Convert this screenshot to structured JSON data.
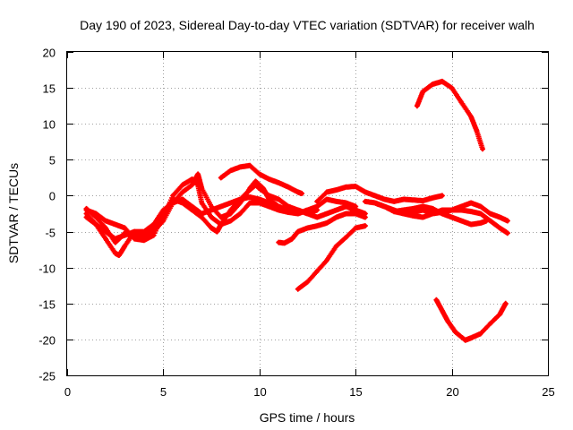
{
  "chart_data": {
    "type": "scatter",
    "title": "Day 190 of 2023, Sidereal Day-to-day VTEC variation (SDTVAR) for receiver walh",
    "xlabel": "GPS time / hours",
    "ylabel": "SDTVAR / TECUs",
    "xlim": [
      0,
      25
    ],
    "ylim": [
      -25,
      20
    ],
    "xticks": [
      0,
      5,
      10,
      15,
      20,
      25
    ],
    "yticks": [
      -25,
      -20,
      -15,
      -10,
      -5,
      0,
      5,
      10,
      15,
      20
    ],
    "grid": true,
    "marker_color": "#ff0000",
    "series": [
      {
        "name": "track-1",
        "points": [
          [
            1.0,
            -1.8
          ],
          [
            1.5,
            -3.0
          ],
          [
            2.0,
            -4.5
          ],
          [
            2.5,
            -6.5
          ],
          [
            2.7,
            -6.0
          ],
          [
            3.0,
            -5.2
          ],
          [
            3.5,
            -5.8
          ],
          [
            4.0,
            -5.5
          ],
          [
            4.5,
            -4.5
          ],
          [
            5.0,
            -3.0
          ],
          [
            5.5,
            0.0
          ],
          [
            6.0,
            1.5
          ],
          [
            6.5,
            2.3
          ],
          [
            6.8,
            1.5
          ],
          [
            7.0,
            -1.0
          ],
          [
            7.5,
            -3.0
          ],
          [
            8.0,
            -4.0
          ],
          [
            8.5,
            -3.5
          ],
          [
            9.0,
            -2.5
          ],
          [
            9.5,
            -1.0
          ],
          [
            10.0,
            -1.0
          ],
          [
            10.5,
            -1.5
          ],
          [
            11.0,
            -2.0
          ],
          [
            11.5,
            -2.3
          ],
          [
            12.0,
            -2.0
          ],
          [
            12.5,
            -2.5
          ],
          [
            13.0,
            -3.0
          ],
          [
            13.5,
            -2.5
          ],
          [
            14.0,
            -2.0
          ],
          [
            14.5,
            -1.5
          ],
          [
            15.0,
            -2.0
          ],
          [
            15.5,
            -2.5
          ]
        ]
      },
      {
        "name": "track-2",
        "points": [
          [
            1.0,
            -2.5
          ],
          [
            1.5,
            -4.0
          ],
          [
            2.0,
            -6.0
          ],
          [
            2.5,
            -8.0
          ],
          [
            2.7,
            -8.3
          ],
          [
            3.0,
            -7.0
          ],
          [
            3.5,
            -5.0
          ],
          [
            4.0,
            -5.5
          ],
          [
            4.5,
            -5.0
          ],
          [
            5.0,
            -3.5
          ],
          [
            5.5,
            -1.0
          ],
          [
            6.0,
            0.5
          ],
          [
            6.5,
            1.5
          ],
          [
            6.8,
            3.0
          ],
          [
            7.0,
            1.0
          ],
          [
            7.5,
            -1.5
          ],
          [
            8.0,
            -3.0
          ],
          [
            8.5,
            -2.5
          ],
          [
            9.0,
            -1.0
          ],
          [
            9.5,
            1.0
          ],
          [
            9.8,
            2.0
          ],
          [
            10.2,
            1.0
          ],
          [
            10.5,
            -0.5
          ],
          [
            11.0,
            -1.5
          ],
          [
            11.5,
            -2.0
          ],
          [
            12.0,
            -2.5
          ],
          [
            12.5,
            -2.0
          ]
        ]
      },
      {
        "name": "track-3",
        "points": [
          [
            1.0,
            -2.0
          ],
          [
            1.5,
            -2.5
          ],
          [
            2.0,
            -3.5
          ],
          [
            2.5,
            -4.0
          ],
          [
            3.0,
            -4.5
          ],
          [
            3.5,
            -6.0
          ],
          [
            4.0,
            -6.2
          ],
          [
            4.5,
            -5.5
          ],
          [
            5.0,
            -2.5
          ],
          [
            5.5,
            -0.5
          ],
          [
            6.0,
            -1.0
          ],
          [
            6.5,
            -2.0
          ],
          [
            7.0,
            -3.0
          ],
          [
            7.5,
            -4.5
          ],
          [
            7.8,
            -5.0
          ],
          [
            8.0,
            -4.0
          ],
          [
            8.5,
            -2.0
          ],
          [
            9.0,
            -0.5
          ],
          [
            9.5,
            0.8
          ],
          [
            9.8,
            1.5
          ],
          [
            10.0,
            1.0
          ],
          [
            10.5,
            0.0
          ],
          [
            11.0,
            -0.5
          ],
          [
            11.5,
            -1.5
          ],
          [
            12.0,
            -2.0
          ],
          [
            12.5,
            -2.5
          ],
          [
            13.0,
            -2.0
          ]
        ]
      },
      {
        "name": "track-4",
        "points": [
          [
            1.0,
            -3.0
          ],
          [
            1.5,
            -4.0
          ],
          [
            2.0,
            -5.0
          ],
          [
            2.5,
            -6.0
          ],
          [
            3.0,
            -5.5
          ],
          [
            3.5,
            -5.0
          ],
          [
            4.0,
            -5.0
          ],
          [
            4.5,
            -4.0
          ],
          [
            5.0,
            -2.0
          ],
          [
            5.5,
            -1.0
          ],
          [
            6.0,
            -0.5
          ],
          [
            6.5,
            -1.5
          ],
          [
            7.0,
            -2.5
          ],
          [
            7.5,
            -2.0
          ],
          [
            8.0,
            -1.5
          ],
          [
            8.5,
            -1.0
          ],
          [
            9.0,
            -0.5
          ],
          [
            9.5,
            -0.2
          ],
          [
            10.0,
            -0.5
          ],
          [
            10.5,
            -1.0
          ],
          [
            11.0,
            -1.8
          ],
          [
            11.5,
            -2.3
          ],
          [
            12.0,
            -2.5
          ],
          [
            12.5,
            -2.0
          ],
          [
            13.0,
            -1.5
          ],
          [
            13.5,
            -0.5
          ],
          [
            14.0,
            -0.8
          ],
          [
            14.5,
            -1.0
          ],
          [
            15.0,
            -1.5
          ]
        ]
      },
      {
        "name": "track-5",
        "points": [
          [
            8.0,
            2.5
          ],
          [
            8.5,
            3.5
          ],
          [
            9.0,
            4.0
          ],
          [
            9.5,
            4.2
          ],
          [
            10.0,
            3.0
          ],
          [
            10.5,
            2.3
          ],
          [
            11.0,
            1.8
          ],
          [
            11.5,
            1.2
          ],
          [
            12.0,
            0.5
          ],
          [
            12.2,
            0.3
          ]
        ]
      },
      {
        "name": "track-6",
        "points": [
          [
            11.0,
            -6.5
          ],
          [
            11.3,
            -6.6
          ],
          [
            11.7,
            -6.0
          ],
          [
            12.0,
            -5.0
          ],
          [
            12.5,
            -4.5
          ],
          [
            13.0,
            -4.2
          ],
          [
            13.5,
            -3.8
          ],
          [
            14.0,
            -3.0
          ],
          [
            14.5,
            -2.5
          ],
          [
            15.0,
            -2.5
          ],
          [
            15.5,
            -3.0
          ]
        ]
      },
      {
        "name": "track-7",
        "points": [
          [
            12.0,
            -13.0
          ],
          [
            12.5,
            -12.0
          ],
          [
            13.0,
            -10.5
          ],
          [
            13.5,
            -9.0
          ],
          [
            14.0,
            -7.0
          ],
          [
            14.5,
            -5.8
          ],
          [
            15.0,
            -4.5
          ],
          [
            15.5,
            -4.2
          ]
        ]
      },
      {
        "name": "track-8",
        "points": [
          [
            13.0,
            -0.8
          ],
          [
            13.5,
            0.5
          ],
          [
            14.0,
            0.8
          ],
          [
            14.5,
            1.2
          ],
          [
            15.0,
            1.3
          ],
          [
            15.5,
            0.5
          ],
          [
            16.0,
            0.0
          ],
          [
            16.5,
            -0.5
          ],
          [
            17.0,
            -0.8
          ],
          [
            17.5,
            -0.5
          ],
          [
            18.0,
            -0.6
          ],
          [
            18.5,
            -0.7
          ],
          [
            19.0,
            -0.3
          ],
          [
            19.5,
            0.0
          ]
        ]
      },
      {
        "name": "track-9",
        "points": [
          [
            15.5,
            -0.8
          ],
          [
            16.0,
            -1.0
          ],
          [
            16.5,
            -1.5
          ],
          [
            17.0,
            -2.2
          ],
          [
            17.5,
            -2.5
          ],
          [
            18.0,
            -2.3
          ],
          [
            18.5,
            -2.0
          ],
          [
            19.0,
            -2.5
          ],
          [
            19.5,
            -2.3
          ],
          [
            20.0,
            -2.0
          ],
          [
            20.5,
            -1.5
          ],
          [
            21.0,
            -1.0
          ],
          [
            21.5,
            -1.5
          ],
          [
            22.0,
            -2.5
          ],
          [
            22.5,
            -3.0
          ],
          [
            22.9,
            -3.5
          ]
        ]
      },
      {
        "name": "track-10",
        "points": [
          [
            16.0,
            -1.0
          ],
          [
            16.5,
            -1.5
          ],
          [
            17.0,
            -2.0
          ],
          [
            17.5,
            -2.5
          ],
          [
            18.0,
            -2.8
          ],
          [
            18.5,
            -3.0
          ],
          [
            19.0,
            -2.5
          ],
          [
            19.5,
            -2.0
          ],
          [
            20.0,
            -2.0
          ],
          [
            20.5,
            -2.0
          ],
          [
            21.0,
            -2.2
          ],
          [
            21.5,
            -2.5
          ],
          [
            22.0,
            -3.5
          ],
          [
            22.5,
            -4.5
          ],
          [
            22.9,
            -5.2
          ]
        ]
      },
      {
        "name": "track-11",
        "points": [
          [
            17.0,
            -2.2
          ],
          [
            17.5,
            -2.0
          ],
          [
            18.0,
            -1.8
          ],
          [
            18.5,
            -1.5
          ],
          [
            19.0,
            -1.8
          ],
          [
            19.5,
            -2.5
          ],
          [
            20.0,
            -3.0
          ],
          [
            20.5,
            -3.5
          ],
          [
            21.0,
            -4.0
          ],
          [
            21.5,
            -3.8
          ],
          [
            21.8,
            -3.5
          ]
        ]
      },
      {
        "name": "track-12",
        "points": [
          [
            18.2,
            12.5
          ],
          [
            18.5,
            14.5
          ],
          [
            19.0,
            15.5
          ],
          [
            19.5,
            15.9
          ],
          [
            20.0,
            15.0
          ],
          [
            20.5,
            13.0
          ],
          [
            21.0,
            11.0
          ],
          [
            21.3,
            9.0
          ],
          [
            21.6,
            6.5
          ]
        ]
      },
      {
        "name": "track-13",
        "points": [
          [
            19.2,
            -14.5
          ],
          [
            19.5,
            -16.0
          ],
          [
            19.8,
            -17.5
          ],
          [
            20.2,
            -19.0
          ],
          [
            20.7,
            -20.1
          ],
          [
            21.0,
            -19.8
          ],
          [
            21.5,
            -19.2
          ],
          [
            22.0,
            -17.8
          ],
          [
            22.5,
            -16.5
          ],
          [
            22.8,
            -15.0
          ]
        ]
      }
    ]
  }
}
